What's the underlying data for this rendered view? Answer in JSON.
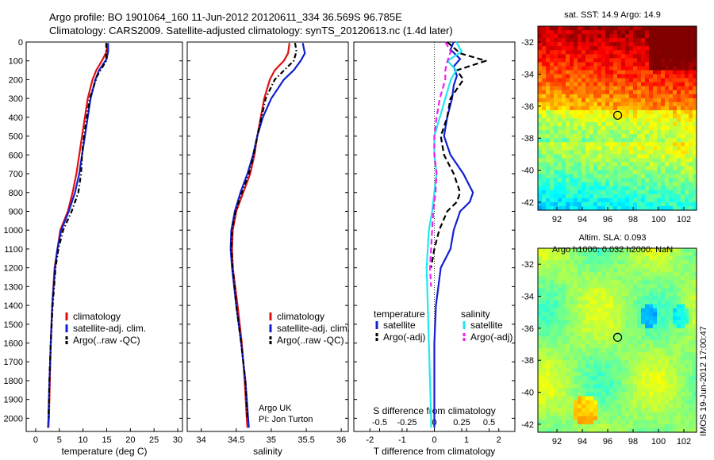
{
  "figure": {
    "title_line1": "Argo profile: BO 1901064_160 11-Jun-2012 20120611_334 36.569S 96.785E",
    "title_line2": "Climatology: CARS2009. Satellite-adjusted climatology: synTS_20120613.nc (1.4d later)",
    "credit_line1": "Argo UK",
    "credit_line2": "PI: Jon Turton",
    "footer": "IMOS 19-Jun-2012 17:00:47"
  },
  "colors": {
    "climatology": "#e01010",
    "satellite": "#1020d0",
    "argo": "#000000",
    "salinity_satellite": "#20e8f0",
    "salinity_argo": "#f020f0"
  },
  "chart_data": [
    {
      "type": "line",
      "name": "temperature-profile",
      "xlabel": "temperature (deg C)",
      "ylabel": "",
      "xlim": [
        -2,
        31
      ],
      "ylim": [
        2070,
        0
      ],
      "xticks": [
        0,
        5,
        10,
        15,
        20,
        25,
        30
      ],
      "yticks": [
        0,
        100,
        200,
        300,
        400,
        500,
        600,
        700,
        800,
        900,
        1000,
        1100,
        1200,
        1300,
        1400,
        1500,
        1600,
        1700,
        1800,
        1900,
        2000
      ],
      "legend": [
        "climatology",
        "satellite-adj. clim.",
        "Argo(..raw -QC)"
      ],
      "legend_position": "lower-right",
      "series": [
        {
          "name": "climatology",
          "style": "solid",
          "color": "#e01010",
          "depth": [
            5,
            50,
            90,
            150,
            200,
            300,
            400,
            500,
            600,
            700,
            800,
            900,
            1000,
            1100,
            1200,
            1400,
            1600,
            1800,
            2000,
            2050
          ],
          "values": [
            15.0,
            15.0,
            14.2,
            12.8,
            12.0,
            11.0,
            10.4,
            9.8,
            9.2,
            8.6,
            7.8,
            6.8,
            5.2,
            4.6,
            4.0,
            3.5,
            3.2,
            3.0,
            2.8,
            2.7
          ]
        },
        {
          "name": "satellite-adj. clim.",
          "style": "solid",
          "color": "#1020d0",
          "depth": [
            5,
            50,
            90,
            150,
            200,
            300,
            400,
            500,
            600,
            700,
            800,
            900,
            1000,
            1100,
            1200,
            1400,
            1600,
            1800,
            2000,
            2050
          ],
          "values": [
            15.3,
            15.3,
            15.0,
            13.4,
            12.6,
            11.6,
            11.0,
            10.4,
            9.8,
            9.2,
            8.3,
            7.0,
            5.4,
            4.6,
            4.1,
            3.5,
            3.2,
            2.9,
            2.7,
            2.6
          ]
        },
        {
          "name": "Argo(..raw -QC)",
          "style": "dashdot",
          "color": "#000000",
          "depth": [
            5,
            100,
            180,
            300,
            400,
            500,
            600,
            700,
            800,
            900,
            1000,
            1100,
            1200,
            1400,
            1600,
            1800,
            2000
          ],
          "values": [
            14.9,
            14.9,
            13.0,
            11.4,
            10.8,
            10.2,
            9.8,
            9.6,
            9.0,
            7.6,
            5.8,
            4.8,
            4.2,
            3.6,
            3.2,
            2.9,
            2.7
          ]
        }
      ]
    },
    {
      "type": "line",
      "name": "salinity-profile",
      "xlabel": "salinity",
      "ylabel": "",
      "xlim": [
        33.8,
        36.1
      ],
      "ylim": [
        2070,
        0
      ],
      "xticks": [
        34,
        34.5,
        35,
        35.5,
        36
      ],
      "xtick_labels": [
        "34",
        "34.5",
        "35",
        "35.5",
        "36"
      ],
      "legend": [
        "climatology",
        "satellite-adj. clim.",
        "Argo(..raw -QC)"
      ],
      "legend_position": "lower-right",
      "series": [
        {
          "name": "climatology",
          "style": "solid",
          "color": "#e01010",
          "depth": [
            5,
            60,
            100,
            150,
            200,
            300,
            400,
            500,
            600,
            700,
            800,
            900,
            1000,
            1100,
            1200,
            1400,
            1600,
            1800,
            2000,
            2050
          ],
          "values": [
            35.26,
            35.24,
            35.18,
            35.05,
            34.98,
            34.9,
            34.85,
            34.8,
            34.76,
            34.7,
            34.6,
            34.5,
            34.45,
            34.44,
            34.45,
            34.52,
            34.58,
            34.62,
            34.65,
            34.66
          ]
        },
        {
          "name": "satellite-adj. clim.",
          "style": "solid",
          "color": "#1020d0",
          "depth": [
            5,
            60,
            100,
            150,
            200,
            300,
            400,
            500,
            600,
            700,
            800,
            900,
            1000,
            1100,
            1200,
            1400,
            1600,
            1800,
            2000,
            2050
          ],
          "values": [
            35.45,
            35.48,
            35.42,
            35.32,
            35.18,
            35.0,
            34.88,
            34.8,
            34.74,
            34.66,
            34.56,
            34.48,
            34.43,
            34.42,
            34.44,
            34.5,
            34.57,
            34.63,
            34.67,
            34.68
          ]
        },
        {
          "name": "Argo(..raw -QC)",
          "style": "dashdot",
          "color": "#000000",
          "depth": [
            5,
            50,
            100,
            200,
            300,
            400,
            500,
            600,
            700,
            800,
            900,
            1000,
            1100,
            1200,
            1400,
            1600,
            1800,
            2000
          ],
          "values": [
            35.34,
            35.36,
            35.32,
            35.05,
            34.92,
            34.86,
            34.8,
            34.75,
            34.68,
            34.58,
            34.49,
            34.44,
            34.43,
            34.45,
            34.5,
            34.57,
            34.63,
            34.66
          ]
        }
      ]
    },
    {
      "type": "line",
      "name": "difference-profile",
      "xlabel": "T difference from climatology",
      "xlabel_top": "S difference from climatology",
      "xlim": [
        -2.5,
        2.5
      ],
      "ylim": [
        2070,
        0
      ],
      "xticks": [
        -2,
        -1,
        0,
        1,
        2
      ],
      "xticks_top": [
        -0.5,
        -0.25,
        0,
        0.25,
        0.5
      ],
      "xtick_labels_top": [
        "-0.5",
        "-0.25",
        "0",
        "0.25",
        "0.5"
      ],
      "reference_line": 0,
      "legend_groups": [
        "temperature",
        "salinity"
      ],
      "legend": [
        "satellite",
        "Argo(-adj)",
        "satellite",
        "Argo(-adj)"
      ],
      "legend_position": "lower-center",
      "series": [
        {
          "name": "satellite",
          "group": "temperature",
          "style": "solid",
          "color": "#1020d0",
          "depth": [
            0,
            40,
            90,
            130,
            180,
            230,
            300,
            400,
            500,
            600,
            700,
            800,
            850,
            900,
            1000,
            1100,
            1200,
            1400,
            1600,
            1800,
            2000,
            2050
          ],
          "values": [
            0.6,
            0.5,
            0.8,
            0.6,
            0.7,
            0.6,
            0.55,
            0.4,
            0.3,
            0.5,
            0.9,
            1.2,
            1.1,
            0.8,
            0.6,
            0.5,
            0.2,
            0.05,
            0.0,
            0.0,
            0.0,
            0.0
          ]
        },
        {
          "name": "Argo(-adj)",
          "group": "temperature",
          "style": "dashed",
          "color": "#000000",
          "depth": [
            0,
            60,
            100,
            150,
            200,
            300,
            400,
            500,
            600,
            700,
            800,
            850,
            900,
            1000,
            1100,
            1200
          ],
          "values": [
            0.4,
            0.8,
            1.6,
            0.7,
            0.9,
            0.5,
            0.4,
            0.2,
            0.3,
            0.6,
            0.8,
            0.7,
            0.4,
            0.15,
            0.0,
            -0.1
          ]
        },
        {
          "name": "satellite",
          "group": "salinity",
          "style": "solid",
          "color": "#20e8f0",
          "depth": [
            0,
            50,
            100,
            150,
            200,
            300,
            400,
            500,
            600,
            700,
            800,
            900,
            1000,
            1100,
            1200,
            1400,
            1600,
            1800,
            2000,
            2050
          ],
          "values": [
            0.2,
            0.25,
            0.12,
            0.2,
            0.15,
            0.1,
            0.05,
            0.0,
            0.0,
            0.02,
            0.0,
            -0.02,
            -0.05,
            -0.06,
            -0.07,
            -0.06,
            -0.05,
            -0.04,
            -0.03,
            -0.03
          ]
        },
        {
          "name": "Argo(-adj)",
          "group": "salinity",
          "style": "dashed",
          "color": "#f020f0",
          "depth": [
            0,
            50,
            100,
            150,
            200,
            300,
            400,
            500,
            600,
            700,
            800,
            900,
            1000,
            1100,
            1200,
            1300
          ],
          "values": [
            0.1,
            0.15,
            0.12,
            0.1,
            0.1,
            0.05,
            0.02,
            0.0,
            0.0,
            0.02,
            0.01,
            -0.01,
            -0.02,
            -0.03,
            -0.04,
            -0.03
          ]
        }
      ]
    },
    {
      "type": "heatmap",
      "name": "sst-map",
      "title": "sat. SST: 14.9  Argo: 14.9",
      "xlim": [
        90.5,
        103
      ],
      "ylim": [
        -42.5,
        -31
      ],
      "xticks": [
        92,
        94,
        96,
        98,
        100,
        102
      ],
      "yticks": [
        -32,
        -34,
        -36,
        -38,
        -40,
        -42
      ],
      "marker": {
        "lon": 96.785,
        "lat": -36.569
      }
    },
    {
      "type": "heatmap",
      "name": "sla-map",
      "title_line1": "Altim. SLA: 0.093",
      "title_line2": "Argo h1000: 0.032 h2000: NaN",
      "xlim": [
        90.5,
        103
      ],
      "ylim": [
        -42.5,
        -31
      ],
      "xticks": [
        92,
        94,
        96,
        98,
        100,
        102
      ],
      "yticks": [
        -32,
        -34,
        -36,
        -38,
        -40,
        -42
      ],
      "marker": {
        "lon": 96.785,
        "lat": -36.569
      }
    }
  ]
}
